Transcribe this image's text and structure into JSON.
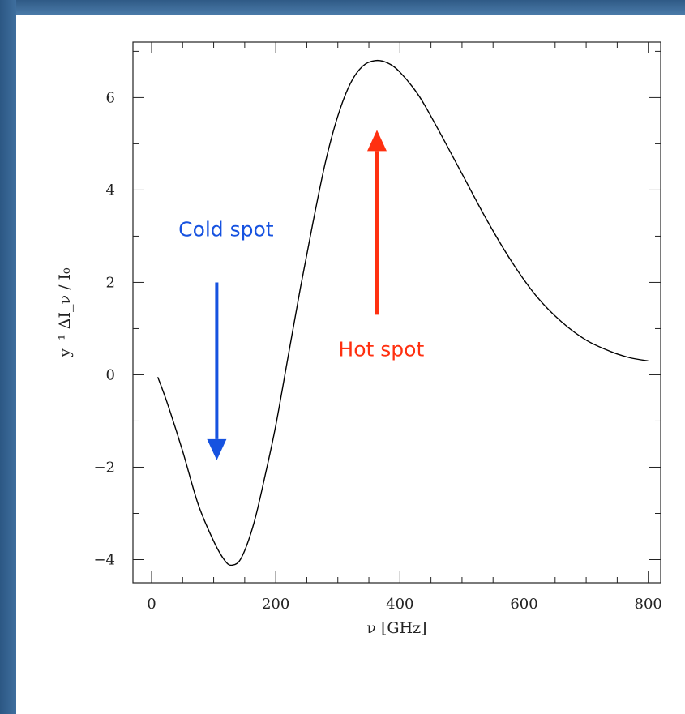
{
  "theme": {
    "band_color": "#3a6a9a",
    "cold_color": "#1652e0",
    "hot_color": "#ff3010",
    "curve_color": "#000000"
  },
  "chart_data": {
    "type": "line",
    "title": "",
    "xlabel": "ν [GHz]",
    "ylabel": "y⁻¹ ΔI_ν / I₀",
    "xlim": [
      -30,
      820
    ],
    "ylim": [
      -4.5,
      7.2
    ],
    "xticks": [
      0,
      200,
      400,
      600,
      800
    ],
    "xtick_labels": [
      "0",
      "200",
      "400",
      "600",
      "800"
    ],
    "yticks": [
      -4,
      -2,
      0,
      2,
      4,
      6
    ],
    "ytick_labels": [
      "−4",
      "−2",
      "0",
      "2",
      "4",
      "6"
    ],
    "x_minor_step": 50,
    "y_minor_step": 1,
    "grid": false,
    "series": [
      {
        "points": [
          [
            10,
            -0.05
          ],
          [
            25,
            -0.6
          ],
          [
            50,
            -1.65
          ],
          [
            75,
            -2.8
          ],
          [
            100,
            -3.6
          ],
          [
            118,
            -4.02
          ],
          [
            130,
            -4.12
          ],
          [
            145,
            -3.95
          ],
          [
            165,
            -3.2
          ],
          [
            185,
            -2.05
          ],
          [
            200,
            -1.1
          ],
          [
            220,
            0.4
          ],
          [
            240,
            1.9
          ],
          [
            260,
            3.3
          ],
          [
            280,
            4.6
          ],
          [
            300,
            5.6
          ],
          [
            320,
            6.3
          ],
          [
            340,
            6.68
          ],
          [
            360,
            6.8
          ],
          [
            380,
            6.75
          ],
          [
            400,
            6.55
          ],
          [
            430,
            6.05
          ],
          [
            460,
            5.35
          ],
          [
            500,
            4.35
          ],
          [
            540,
            3.35
          ],
          [
            580,
            2.45
          ],
          [
            620,
            1.7
          ],
          [
            660,
            1.15
          ],
          [
            700,
            0.75
          ],
          [
            740,
            0.5
          ],
          [
            770,
            0.37
          ],
          [
            800,
            0.3
          ]
        ]
      }
    ],
    "annotations": [
      {
        "text": "Cold spot",
        "text_pos": [
          120,
          3.0
        ],
        "arrow_x": 105,
        "arrow_from": 2.0,
        "arrow_to": -1.85,
        "color": "#1652e0"
      },
      {
        "text": "Hot spot",
        "text_pos": [
          370,
          0.4
        ],
        "arrow_x": 363,
        "arrow_from": 1.3,
        "arrow_to": 5.3,
        "color": "#ff3010"
      }
    ]
  }
}
